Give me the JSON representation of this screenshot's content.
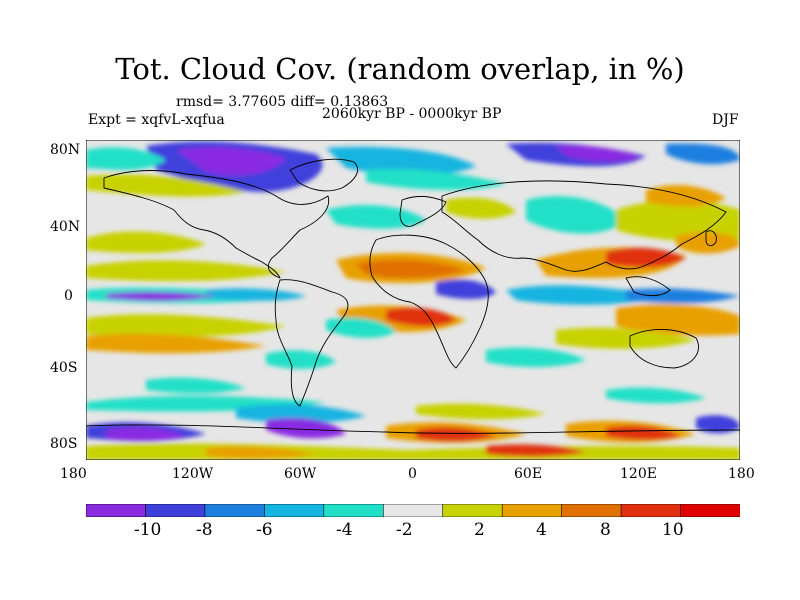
{
  "title": "Tot. Cloud Cov. (random overlap, in %)",
  "stats_line": "rmsd= 3.77605 diff= 0.13863",
  "experiment": "Expt = xqfvL-xqfua",
  "period": "2060kyr BP - 0000kyr BP",
  "season": "DJF",
  "x_ticks": [
    "180",
    "120W",
    "60W",
    "0",
    "60E",
    "120E",
    "180"
  ],
  "y_ticks": [
    "80N",
    "40N",
    "0",
    "40S",
    "80S"
  ],
  "colorbar": {
    "colors": [
      "#8a2be2",
      "#3f3fdc",
      "#1f7fe0",
      "#16b4e0",
      "#22e0c8",
      "#e6e6e6",
      "#c8d200",
      "#e8a000",
      "#e07000",
      "#e03010",
      "#e00000"
    ],
    "labels": [
      "-10",
      "-8",
      "-6",
      "-4",
      "-2",
      "2",
      "4",
      "8",
      "10"
    ]
  },
  "colors": {
    "background": "#e6e6e6",
    "coast": "#000000"
  }
}
